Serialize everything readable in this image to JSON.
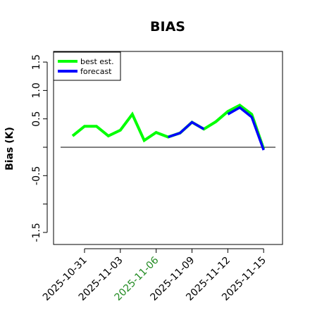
{
  "chart_data": {
    "type": "line",
    "title": "BIAS",
    "ylabel": "Bias (K)",
    "xlabel": "",
    "ylim": [
      -1.65,
      1.65
    ],
    "yticks": [
      -1.5,
      -1.0,
      -0.5,
      0.0,
      0.5,
      1.0,
      1.5
    ],
    "ytick_labels": [
      "-1.5",
      "",
      "-0.5",
      "",
      "0.5",
      "1.0",
      "1.5"
    ],
    "xlim": [
      "2025-10-29",
      "2025-11-17"
    ],
    "xticks": [
      "2025-10-31",
      "2025-11-03",
      "2025-11-06",
      "2025-11-09",
      "2025-11-12",
      "2025-11-15"
    ],
    "xtick_colors": [
      "#000000",
      "#000000",
      "#228B22",
      "#000000",
      "#000000",
      "#000000"
    ],
    "zero_line": 0.0,
    "grid": false,
    "legend_position": "top-left",
    "series": [
      {
        "name": "best est.",
        "color": "#00ff00",
        "x": [
          "2025-10-30",
          "2025-10-31",
          "2025-11-01",
          "2025-11-02",
          "2025-11-03",
          "2025-11-04",
          "2025-11-05",
          "2025-11-06",
          "2025-11-07",
          "2025-11-08",
          "2025-11-09",
          "2025-11-10",
          "2025-11-11",
          "2025-11-12",
          "2025-11-13",
          "2025-11-14",
          "2025-11-15"
        ],
        "values": [
          0.2,
          0.37,
          0.37,
          0.2,
          0.3,
          0.58,
          0.12,
          0.26,
          0.18,
          0.25,
          0.44,
          0.32,
          0.45,
          0.63,
          0.74,
          0.58,
          -0.03
        ]
      },
      {
        "name": "forecast",
        "color": "#0000ff",
        "x": [
          "2025-11-07",
          "2025-11-08",
          "2025-11-09",
          "2025-11-10",
          "2025-11-11",
          "2025-11-12",
          "2025-11-13",
          "2025-11-14",
          "2025-11-15"
        ],
        "values": [
          0.18,
          0.25,
          0.44,
          0.32,
          null,
          0.58,
          0.7,
          0.53,
          -0.05
        ]
      }
    ]
  }
}
